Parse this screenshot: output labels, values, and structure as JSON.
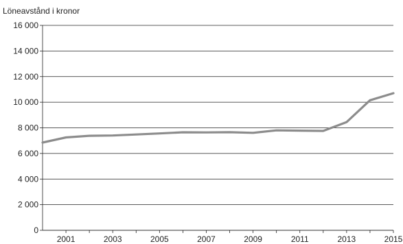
{
  "chart_data": {
    "type": "line",
    "ylabel": "Löneavstånd i kronor",
    "xlabel": "",
    "title": "",
    "xlim": [
      2000,
      2015
    ],
    "ylim": [
      0,
      16000
    ],
    "x_ticks": [
      2001,
      2003,
      2005,
      2007,
      2009,
      2011,
      2013,
      2015
    ],
    "y_ticks": [
      0,
      2000,
      4000,
      6000,
      8000,
      10000,
      12000,
      14000,
      16000
    ],
    "y_tick_labels": [
      "0",
      "2 000",
      "4 000",
      "6 000",
      "8 000",
      "10 000",
      "12 000",
      "14 000",
      "16 000"
    ],
    "grid": "horizontal",
    "series": [
      {
        "color": "#8c8c8c",
        "x": [
          2000,
          2001,
          2002,
          2003,
          2004,
          2005,
          2006,
          2007,
          2008,
          2009,
          2010,
          2011,
          2012,
          2013,
          2014,
          2015
        ],
        "y": [
          6850,
          7250,
          7380,
          7400,
          7480,
          7560,
          7650,
          7640,
          7660,
          7610,
          7800,
          7780,
          7760,
          8450,
          10150,
          10700
        ]
      }
    ]
  }
}
